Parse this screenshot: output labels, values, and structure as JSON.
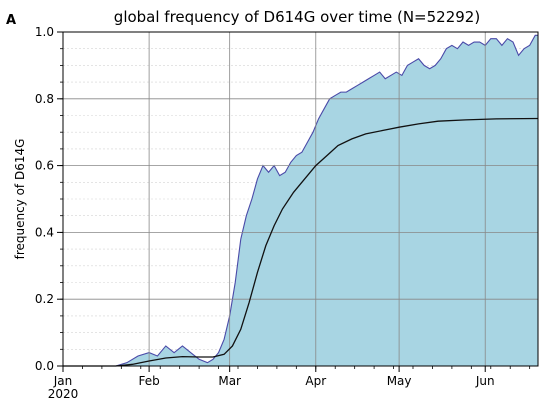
{
  "chart_data": {
    "type": "area",
    "panel_label": "A",
    "title": "global frequency of D614G over time (N=52292)",
    "xlabel": "",
    "ylabel": "frequency of D614G",
    "ylim": [
      0.0,
      1.0
    ],
    "xlim": [
      "2020-01-01",
      "2020-06-20"
    ],
    "x_ticks": [
      {
        "date": "2020-01-01",
        "label": "Jan",
        "sublabel": "2020"
      },
      {
        "date": "2020-02-01",
        "label": "Feb",
        "sublabel": ""
      },
      {
        "date": "2020-03-01",
        "label": "Mar",
        "sublabel": ""
      },
      {
        "date": "2020-04-01",
        "label": "Apr",
        "sublabel": ""
      },
      {
        "date": "2020-05-01",
        "label": "May",
        "sublabel": ""
      },
      {
        "date": "2020-06-01",
        "label": "Jun",
        "sublabel": ""
      }
    ],
    "y_ticks": [
      {
        "value": 0.0,
        "label": "0.0"
      },
      {
        "value": 0.2,
        "label": "0.2"
      },
      {
        "value": 0.4,
        "label": "0.4"
      },
      {
        "value": 0.6,
        "label": "0.6"
      },
      {
        "value": 0.8,
        "label": "0.8"
      },
      {
        "value": 1.0,
        "label": "1.0"
      }
    ],
    "grid": true,
    "colors": {
      "fill": "#a8d5e3",
      "outline": "#4a4aa8",
      "smooth": "#111111",
      "grid": "#888888"
    },
    "series": [
      {
        "style": "filled-area",
        "points": [
          {
            "x": "2020-01-01",
            "y": 0.0
          },
          {
            "x": "2020-01-10",
            "y": 0.0
          },
          {
            "x": "2020-01-20",
            "y": 0.0
          },
          {
            "x": "2020-01-24",
            "y": 0.01
          },
          {
            "x": "2020-01-28",
            "y": 0.03
          },
          {
            "x": "2020-02-01",
            "y": 0.04
          },
          {
            "x": "2020-02-04",
            "y": 0.03
          },
          {
            "x": "2020-02-07",
            "y": 0.06
          },
          {
            "x": "2020-02-10",
            "y": 0.04
          },
          {
            "x": "2020-02-13",
            "y": 0.06
          },
          {
            "x": "2020-02-16",
            "y": 0.04
          },
          {
            "x": "2020-02-19",
            "y": 0.02
          },
          {
            "x": "2020-02-22",
            "y": 0.01
          },
          {
            "x": "2020-02-24",
            "y": 0.02
          },
          {
            "x": "2020-02-26",
            "y": 0.04
          },
          {
            "x": "2020-02-28",
            "y": 0.08
          },
          {
            "x": "2020-03-01",
            "y": 0.15
          },
          {
            "x": "2020-03-03",
            "y": 0.25
          },
          {
            "x": "2020-03-05",
            "y": 0.38
          },
          {
            "x": "2020-03-07",
            "y": 0.45
          },
          {
            "x": "2020-03-09",
            "y": 0.5
          },
          {
            "x": "2020-03-11",
            "y": 0.56
          },
          {
            "x": "2020-03-13",
            "y": 0.6
          },
          {
            "x": "2020-03-15",
            "y": 0.58
          },
          {
            "x": "2020-03-17",
            "y": 0.6
          },
          {
            "x": "2020-03-19",
            "y": 0.57
          },
          {
            "x": "2020-03-21",
            "y": 0.58
          },
          {
            "x": "2020-03-23",
            "y": 0.61
          },
          {
            "x": "2020-03-25",
            "y": 0.63
          },
          {
            "x": "2020-03-27",
            "y": 0.64
          },
          {
            "x": "2020-03-29",
            "y": 0.67
          },
          {
            "x": "2020-03-31",
            "y": 0.7
          },
          {
            "x": "2020-04-02",
            "y": 0.74
          },
          {
            "x": "2020-04-04",
            "y": 0.77
          },
          {
            "x": "2020-04-06",
            "y": 0.8
          },
          {
            "x": "2020-04-08",
            "y": 0.81
          },
          {
            "x": "2020-04-10",
            "y": 0.82
          },
          {
            "x": "2020-04-12",
            "y": 0.82
          },
          {
            "x": "2020-04-14",
            "y": 0.83
          },
          {
            "x": "2020-04-16",
            "y": 0.84
          },
          {
            "x": "2020-04-18",
            "y": 0.85
          },
          {
            "x": "2020-04-20",
            "y": 0.86
          },
          {
            "x": "2020-04-22",
            "y": 0.87
          },
          {
            "x": "2020-04-24",
            "y": 0.88
          },
          {
            "x": "2020-04-26",
            "y": 0.86
          },
          {
            "x": "2020-04-28",
            "y": 0.87
          },
          {
            "x": "2020-04-30",
            "y": 0.88
          },
          {
            "x": "2020-05-02",
            "y": 0.87
          },
          {
            "x": "2020-05-04",
            "y": 0.9
          },
          {
            "x": "2020-05-06",
            "y": 0.91
          },
          {
            "x": "2020-05-08",
            "y": 0.92
          },
          {
            "x": "2020-05-10",
            "y": 0.9
          },
          {
            "x": "2020-05-12",
            "y": 0.89
          },
          {
            "x": "2020-05-14",
            "y": 0.9
          },
          {
            "x": "2020-05-16",
            "y": 0.92
          },
          {
            "x": "2020-05-18",
            "y": 0.95
          },
          {
            "x": "2020-05-20",
            "y": 0.96
          },
          {
            "x": "2020-05-22",
            "y": 0.95
          },
          {
            "x": "2020-05-24",
            "y": 0.97
          },
          {
            "x": "2020-05-26",
            "y": 0.96
          },
          {
            "x": "2020-05-28",
            "y": 0.97
          },
          {
            "x": "2020-05-30",
            "y": 0.97
          },
          {
            "x": "2020-06-01",
            "y": 0.96
          },
          {
            "x": "2020-06-03",
            "y": 0.98
          },
          {
            "x": "2020-06-05",
            "y": 0.98
          },
          {
            "x": "2020-06-07",
            "y": 0.96
          },
          {
            "x": "2020-06-09",
            "y": 0.98
          },
          {
            "x": "2020-06-11",
            "y": 0.97
          },
          {
            "x": "2020-06-13",
            "y": 0.93
          },
          {
            "x": "2020-06-15",
            "y": 0.95
          },
          {
            "x": "2020-06-17",
            "y": 0.96
          },
          {
            "x": "2020-06-19",
            "y": 0.99
          },
          {
            "x": "2020-06-20",
            "y": 0.99
          }
        ]
      },
      {
        "style": "line",
        "points": [
          {
            "x": "2020-01-01",
            "y": 0.0
          },
          {
            "x": "2020-01-20",
            "y": 0.0
          },
          {
            "x": "2020-01-26",
            "y": 0.005
          },
          {
            "x": "2020-02-01",
            "y": 0.015
          },
          {
            "x": "2020-02-07",
            "y": 0.024
          },
          {
            "x": "2020-02-13",
            "y": 0.028
          },
          {
            "x": "2020-02-19",
            "y": 0.027
          },
          {
            "x": "2020-02-24",
            "y": 0.027
          },
          {
            "x": "2020-02-28",
            "y": 0.035
          },
          {
            "x": "2020-03-02",
            "y": 0.06
          },
          {
            "x": "2020-03-05",
            "y": 0.11
          },
          {
            "x": "2020-03-08",
            "y": 0.19
          },
          {
            "x": "2020-03-11",
            "y": 0.28
          },
          {
            "x": "2020-03-14",
            "y": 0.36
          },
          {
            "x": "2020-03-17",
            "y": 0.42
          },
          {
            "x": "2020-03-20",
            "y": 0.47
          },
          {
            "x": "2020-03-24",
            "y": 0.52
          },
          {
            "x": "2020-03-28",
            "y": 0.56
          },
          {
            "x": "2020-04-01",
            "y": 0.6
          },
          {
            "x": "2020-04-05",
            "y": 0.63
          },
          {
            "x": "2020-04-09",
            "y": 0.66
          },
          {
            "x": "2020-04-14",
            "y": 0.68
          },
          {
            "x": "2020-04-19",
            "y": 0.695
          },
          {
            "x": "2020-04-25",
            "y": 0.705
          },
          {
            "x": "2020-05-01",
            "y": 0.715
          },
          {
            "x": "2020-05-08",
            "y": 0.725
          },
          {
            "x": "2020-05-15",
            "y": 0.733
          },
          {
            "x": "2020-05-25",
            "y": 0.737
          },
          {
            "x": "2020-06-05",
            "y": 0.74
          },
          {
            "x": "2020-06-20",
            "y": 0.741
          }
        ]
      }
    ]
  }
}
